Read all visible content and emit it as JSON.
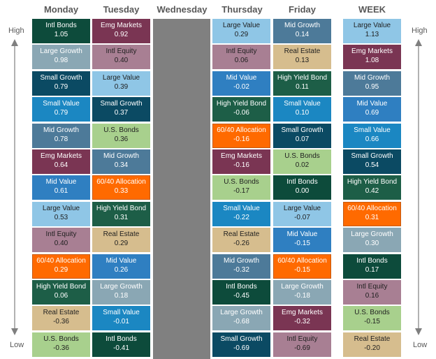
{
  "days": [
    "Monday",
    "Tuesday",
    "Wednesday",
    "Thursday",
    "Friday",
    "WEEK"
  ],
  "high_label": "High",
  "low_label": "Low",
  "colors": {
    "Intl Bonds": "#0d4b3b",
    "Large Growth": "#8aa7b4",
    "Small Growth": "#0b4a63",
    "Small Value": "#1b87c2",
    "Mid Growth": "#4d7a99",
    "Emg Markets": "#7a3553",
    "Mid Value": "#2f7fc1",
    "Large Value": "#8fc6e6",
    "Intl Equity": "#a87f93",
    "60/40 Allocation": "#ff6a00",
    "High Yield Bond": "#1d5e47",
    "Real Estate": "#d6bd8e",
    "U.S. Bonds": "#a8d08d"
  },
  "text_colors": {
    "Intl Bonds": "#ffffff",
    "Large Growth": "#ffffff",
    "Small Growth": "#ffffff",
    "Small Value": "#ffffff",
    "Mid Growth": "#ffffff",
    "Emg Markets": "#ffffff",
    "Mid Value": "#ffffff",
    "Large Value": "#1f1f1f",
    "Intl Equity": "#1f1f1f",
    "60/40 Allocation": "#ffffff",
    "High Yield Bond": "#ffffff",
    "Real Estate": "#1f1f1f",
    "U.S. Bonds": "#1f1f1f"
  },
  "chart_data": {
    "type": "table",
    "columns": [
      {
        "name": "Monday",
        "rows": [
          {
            "asset": "Intl Bonds",
            "value": "1.05"
          },
          {
            "asset": "Large Growth",
            "value": "0.98"
          },
          {
            "asset": "Small Growth",
            "value": "0.79"
          },
          {
            "asset": "Small Value",
            "value": "0.79"
          },
          {
            "asset": "Mid Growth",
            "value": "0.78"
          },
          {
            "asset": "Emg Markets",
            "value": "0.64"
          },
          {
            "asset": "Mid Value",
            "value": "0.61"
          },
          {
            "asset": "Large Value",
            "value": "0.53"
          },
          {
            "asset": "Intl Equity",
            "value": "0.40"
          },
          {
            "asset": "60/40 Allocation",
            "value": "0.29"
          },
          {
            "asset": "High Yield Bond",
            "value": "0.06"
          },
          {
            "asset": "Real Estate",
            "value": "-0.36"
          },
          {
            "asset": "U.S. Bonds",
            "value": "-0.36"
          }
        ]
      },
      {
        "name": "Tuesday",
        "rows": [
          {
            "asset": "Emg Markets",
            "value": "0.92"
          },
          {
            "asset": "Intl Equity",
            "value": "0.40"
          },
          {
            "asset": "Large Value",
            "value": "0.39"
          },
          {
            "asset": "Small Growth",
            "value": "0.37"
          },
          {
            "asset": "U.S. Bonds",
            "value": "0.36"
          },
          {
            "asset": "Mid Growth",
            "value": "0.34"
          },
          {
            "asset": "60/40 Allocation",
            "value": "0.33"
          },
          {
            "asset": "High Yield Bond",
            "value": "0.31"
          },
          {
            "asset": "Real Estate",
            "value": "0.29"
          },
          {
            "asset": "Mid Value",
            "value": "0.26"
          },
          {
            "asset": "Large Growth",
            "value": "0.18"
          },
          {
            "asset": "Small Value",
            "value": "-0.01"
          },
          {
            "asset": "Intl Bonds",
            "value": "-0.41"
          }
        ]
      },
      {
        "name": "Wednesday",
        "rows": []
      },
      {
        "name": "Thursday",
        "rows": [
          {
            "asset": "Large Value",
            "value": "0.29"
          },
          {
            "asset": "Intl Equity",
            "value": "0.06"
          },
          {
            "asset": "Mid Value",
            "value": "-0.02"
          },
          {
            "asset": "High Yield Bond",
            "value": "-0.06"
          },
          {
            "asset": "60/40 Allocation",
            "value": "-0.16"
          },
          {
            "asset": "Emg Markets",
            "value": "-0.16"
          },
          {
            "asset": "U.S. Bonds",
            "value": "-0.17"
          },
          {
            "asset": "Small Value",
            "value": "-0.22"
          },
          {
            "asset": "Real Estate",
            "value": "-0.26"
          },
          {
            "asset": "Mid Growth",
            "value": "-0.32"
          },
          {
            "asset": "Intl Bonds",
            "value": "-0.45"
          },
          {
            "asset": "Large Growth",
            "value": "-0.68"
          },
          {
            "asset": "Small Growth",
            "value": "-0.69"
          }
        ]
      },
      {
        "name": "Friday",
        "rows": [
          {
            "asset": "Mid Growth",
            "value": "0.14"
          },
          {
            "asset": "Real Estate",
            "value": "0.13"
          },
          {
            "asset": "High Yield Bond",
            "value": "0.11"
          },
          {
            "asset": "Small Value",
            "value": "0.10"
          },
          {
            "asset": "Small Growth",
            "value": "0.07"
          },
          {
            "asset": "U.S. Bonds",
            "value": "0.02"
          },
          {
            "asset": "Intl Bonds",
            "value": "0.00"
          },
          {
            "asset": "Large Value",
            "value": "-0.07"
          },
          {
            "asset": "Mid Value",
            "value": "-0.15"
          },
          {
            "asset": "60/40 Allocation",
            "value": "-0.15"
          },
          {
            "asset": "Large Growth",
            "value": "-0.18"
          },
          {
            "asset": "Emg Markets",
            "value": "-0.32"
          },
          {
            "asset": "Intl Equity",
            "value": "-0.69"
          }
        ]
      },
      {
        "name": "WEEK",
        "rows": [
          {
            "asset": "Large Value",
            "value": "1.13"
          },
          {
            "asset": "Emg Markets",
            "value": "1.08"
          },
          {
            "asset": "Mid Growth",
            "value": "0.95"
          },
          {
            "asset": "Mid Value",
            "value": "0.69"
          },
          {
            "asset": "Small Value",
            "value": "0.66"
          },
          {
            "asset": "Small Growth",
            "value": "0.54"
          },
          {
            "asset": "High Yield Bond",
            "value": "0.42"
          },
          {
            "asset": "60/40 Allocation",
            "value": "0.31"
          },
          {
            "asset": "Large Growth",
            "value": "0.30"
          },
          {
            "asset": "Intl Bonds",
            "value": "0.17"
          },
          {
            "asset": "Intl Equity",
            "value": "0.16"
          },
          {
            "asset": "U.S. Bonds",
            "value": "-0.15"
          },
          {
            "asset": "Real Estate",
            "value": "-0.20"
          }
        ]
      }
    ]
  }
}
